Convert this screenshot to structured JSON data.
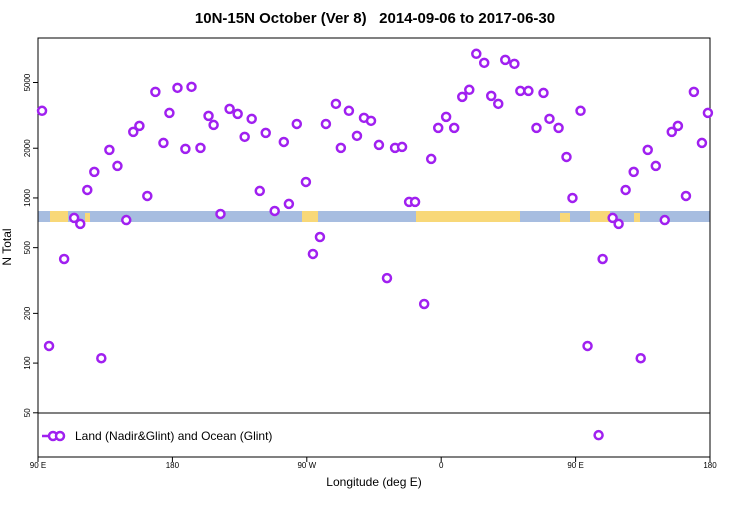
{
  "chart_data": {
    "type": "scatter",
    "title": "10N-15N October (Ver 8)   2014-09-06 to 2017-06-30",
    "xlabel": "Longitude (deg E)",
    "ylabel": "N Total",
    "log_y": true,
    "legend": "bottom left",
    "xlim": [
      90,
      540
    ],
    "xticks": [
      {
        "value": 90,
        "label": "90 E"
      },
      180,
      {
        "value": 270,
        "label": "90 W"
      },
      {
        "value": 360,
        "label": "0"
      },
      {
        "value": 450,
        "label": "90 E"
      },
      {
        "value": 540,
        "label": "180"
      }
    ],
    "ylim": [
      27,
      9300
    ],
    "yticks": [
      50,
      100,
      200,
      500,
      1000,
      2000,
      5000
    ],
    "series": [
      {
        "name": "Land (Nadir&Glint) and Ocean (Glint)",
        "color": "#a020f0",
        "x": [
          92.7,
          97.4,
          107.5,
          114.2,
          118.3,
          123.0,
          127.7,
          132.4,
          137.8,
          143.2,
          149.1,
          153.8,
          157.9,
          163.2,
          168.6,
          174.0,
          178.0,
          183.4,
          188.7,
          192.8,
          198.8,
          204.2,
          207.6,
          212.2,
          218.3,
          223.7,
          228.4,
          233.1,
          238.5,
          242.5,
          248.5,
          254.6,
          258.0,
          263.3,
          269.4,
          274.1,
          278.8,
          282.8,
          289.5,
          292.8,
          298.2,
          303.6,
          308.3,
          313.0,
          318.3,
          323.7,
          329.1,
          333.8,
          338.5,
          342.5,
          348.6,
          353.3,
          358.0,
          363.3,
          368.7,
          374.1,
          378.8,
          383.5,
          388.8,
          393.5,
          398.2,
          402.9,
          409.0,
          413.0,
          418.4,
          423.8,
          428.5,
          432.5,
          438.6,
          443.9,
          447.9,
          453.3,
          458.0,
          465.4,
          468.1,
          474.8,
          478.8,
          483.5,
          488.9,
          493.6,
          498.3,
          503.7,
          509.7,
          514.4,
          518.5,
          523.9,
          529.2,
          534.6,
          538.6
        ],
        "values": [
          3370,
          127,
          427,
          757,
          696,
          1118,
          1438,
          107,
          1954,
          1563,
          735,
          2512,
          2731,
          1028,
          4388,
          2154,
          3273,
          4642,
          1982,
          4707,
          2010,
          3139,
          2768,
          800,
          3461,
          3228,
          2344,
          3013,
          1103,
          2477,
          834,
          2183,
          920,
          2806,
          1250,
          458,
          580,
          2806,
          3715,
          2010,
          3370,
          2377,
          3055,
          2930,
          2094,
          327,
          2010,
          2037,
          946,
          946,
          228,
          1723,
          2656,
          3097,
          2656,
          4093,
          4516,
          7460,
          6579,
          4150,
          3715,
          6855,
          6486,
          4448,
          4448,
          2656,
          4325,
          3013,
          2656,
          1771,
          1000,
          3370,
          127,
          36.6,
          427,
          757,
          696,
          1118,
          1438,
          107,
          1954,
          1563,
          735,
          2512,
          2731,
          1028,
          4388,
          2154,
          3273
        ]
      }
    ]
  }
}
